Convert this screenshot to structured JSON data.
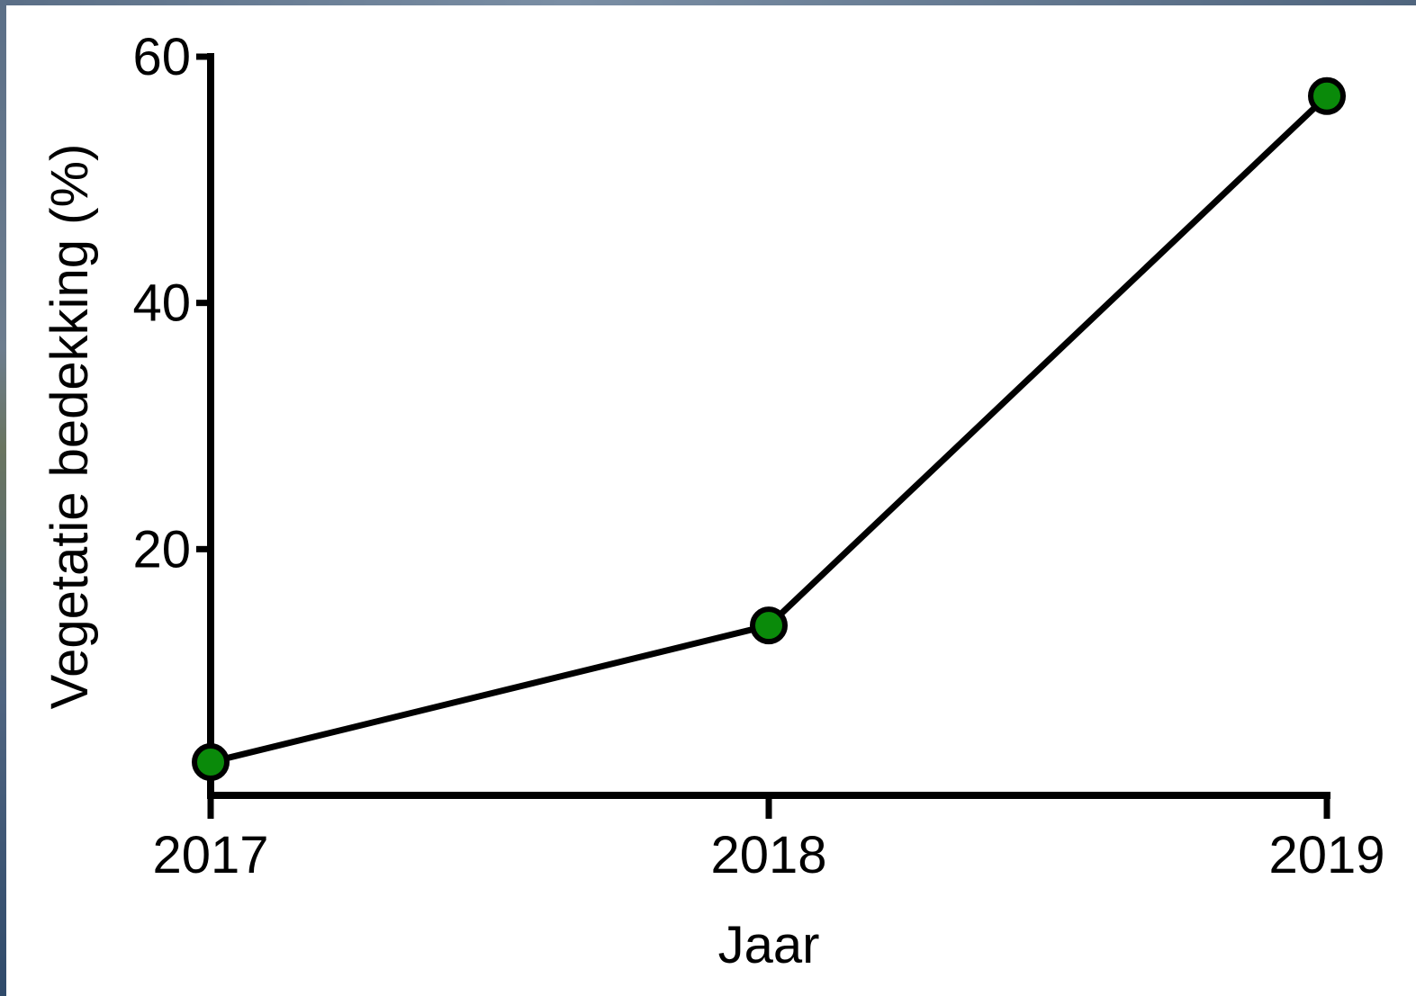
{
  "chart_data": {
    "type": "line",
    "xlabel": "Jaar",
    "ylabel": "Vegetatie bedekking (%)",
    "x": [
      "2017",
      "2018",
      "2019"
    ],
    "series": [
      {
        "values": [
          2.7,
          13.8,
          56.8
        ],
        "color": "#000000",
        "marker_fill": "#0a8a0a",
        "marker_stroke": "#000000"
      }
    ],
    "yticks": [
      "20",
      "40",
      "60"
    ],
    "ylim": [
      0,
      60
    ],
    "grid": false,
    "legend": "none"
  }
}
